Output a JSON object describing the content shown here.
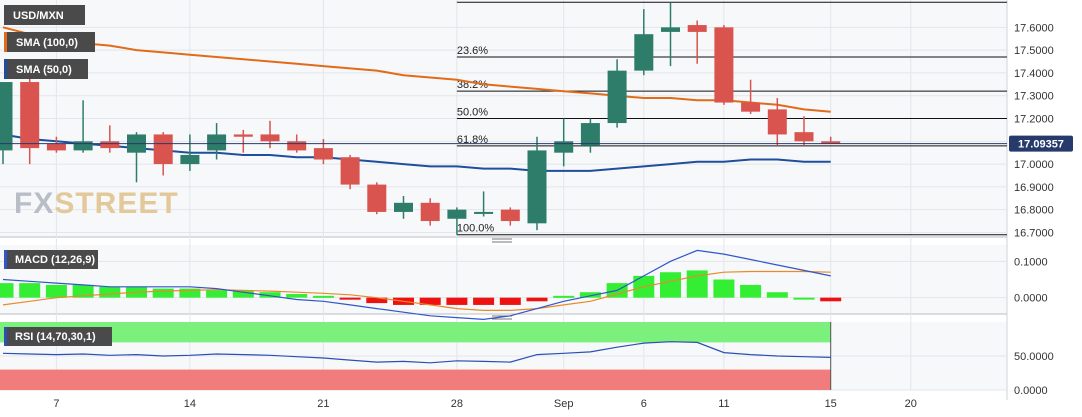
{
  "colors": {
    "up": "#2e7d6b",
    "down": "#d9534f",
    "sma100": "#e06c1a",
    "sma50": "#1f4e9c",
    "macd_line": "#3056c9",
    "signal_line": "#e88a2a",
    "hist_pos": "#33ee33",
    "hist_neg": "#ee1111",
    "rsi_line": "#2a4fb5",
    "rsi_over": "#7cf07c",
    "rsi_under": "#f07c7c",
    "price_tag": "#263a6b",
    "fib": "#111111",
    "grid": "#e3e6ea",
    "legend_bg": "#4a4a4a",
    "watermark": "#c9ced6"
  },
  "legend": {
    "symbol": "USD/MXN",
    "sma100": "SMA (100,0)",
    "sma50": "SMA (50,0)",
    "macd": "MACD (12,26,9)",
    "rsi": "RSI (14,70,30,1)"
  },
  "watermark": {
    "fx": "FX",
    "street": "STREET"
  },
  "price_tag": "17.09357",
  "chart_data": {
    "type": "candlestick",
    "x_labels": [
      {
        "label": "7",
        "index": 2
      },
      {
        "label": "14",
        "index": 7
      },
      {
        "label": "21",
        "index": 12
      },
      {
        "label": "28",
        "index": 17
      },
      {
        "label": "Sep",
        "index": 21
      },
      {
        "label": "6",
        "index": 24
      },
      {
        "label": "11",
        "index": 27
      },
      {
        "label": "15",
        "index": 31
      },
      {
        "label": "20",
        "index": 34
      }
    ],
    "price_axis": {
      "range": [
        16.68,
        17.72
      ],
      "ticks": [
        "17.6000",
        "17.5000",
        "17.4000",
        "17.3000",
        "17.2000",
        "17.1000",
        "17.0000",
        "16.9000",
        "16.8000",
        "16.7000"
      ],
      "tick_values": [
        17.6,
        17.5,
        17.4,
        17.3,
        17.2,
        17.1,
        17.0,
        16.9,
        16.8,
        16.7
      ]
    },
    "candles": [
      {
        "o": 17.06,
        "h": 17.36,
        "l": 17.0,
        "c": 17.36
      },
      {
        "o": 17.36,
        "h": 17.4,
        "l": 17.0,
        "c": 17.07
      },
      {
        "o": 17.09,
        "h": 17.12,
        "l": 17.05,
        "c": 17.06
      },
      {
        "o": 17.06,
        "h": 17.28,
        "l": 17.05,
        "c": 17.1
      },
      {
        "o": 17.1,
        "h": 17.17,
        "l": 17.05,
        "c": 17.07
      },
      {
        "o": 17.05,
        "h": 17.14,
        "l": 16.92,
        "c": 17.13
      },
      {
        "o": 17.13,
        "h": 17.14,
        "l": 16.95,
        "c": 17.0
      },
      {
        "o": 17.0,
        "h": 17.13,
        "l": 16.97,
        "c": 17.04
      },
      {
        "o": 17.06,
        "h": 17.18,
        "l": 17.02,
        "c": 17.13
      },
      {
        "o": 17.13,
        "h": 17.15,
        "l": 17.05,
        "c": 17.12
      },
      {
        "o": 17.13,
        "h": 17.19,
        "l": 17.07,
        "c": 17.1
      },
      {
        "o": 17.1,
        "h": 17.13,
        "l": 17.05,
        "c": 17.06
      },
      {
        "o": 17.07,
        "h": 17.11,
        "l": 17.0,
        "c": 17.02
      },
      {
        "o": 17.03,
        "h": 17.04,
        "l": 16.89,
        "c": 16.91
      },
      {
        "o": 16.91,
        "h": 16.92,
        "l": 16.78,
        "c": 16.79
      },
      {
        "o": 16.79,
        "h": 16.86,
        "l": 16.76,
        "c": 16.83
      },
      {
        "o": 16.83,
        "h": 16.85,
        "l": 16.73,
        "c": 16.75
      },
      {
        "o": 16.76,
        "h": 16.81,
        "l": 16.69,
        "c": 16.8
      },
      {
        "o": 16.79,
        "h": 16.88,
        "l": 16.77,
        "c": 16.79
      },
      {
        "o": 16.8,
        "h": 16.81,
        "l": 16.73,
        "c": 16.75
      },
      {
        "o": 16.74,
        "h": 17.12,
        "l": 16.71,
        "c": 17.06
      },
      {
        "o": 17.05,
        "h": 17.2,
        "l": 16.99,
        "c": 17.1
      },
      {
        "o": 17.08,
        "h": 17.2,
        "l": 17.05,
        "c": 17.18
      },
      {
        "o": 17.18,
        "h": 17.46,
        "l": 17.16,
        "c": 17.41
      },
      {
        "o": 17.41,
        "h": 17.68,
        "l": 17.39,
        "c": 17.57
      },
      {
        "o": 17.58,
        "h": 17.71,
        "l": 17.43,
        "c": 17.6
      },
      {
        "o": 17.61,
        "h": 17.63,
        "l": 17.44,
        "c": 17.58
      },
      {
        "o": 17.6,
        "h": 17.61,
        "l": 17.26,
        "c": 17.27
      },
      {
        "o": 17.27,
        "h": 17.37,
        "l": 17.22,
        "c": 17.23
      },
      {
        "o": 17.24,
        "h": 17.29,
        "l": 17.08,
        "c": 17.13
      },
      {
        "o": 17.14,
        "h": 17.21,
        "l": 17.08,
        "c": 17.1
      },
      {
        "o": 17.1,
        "h": 17.12,
        "l": 17.09,
        "c": 17.09
      }
    ],
    "sma100": [
      17.6,
      17.57,
      17.55,
      17.53,
      17.52,
      17.5,
      17.49,
      17.48,
      17.47,
      17.46,
      17.45,
      17.44,
      17.43,
      17.42,
      17.41,
      17.39,
      17.38,
      17.37,
      17.35,
      17.34,
      17.33,
      17.32,
      17.31,
      17.3,
      17.29,
      17.29,
      17.28,
      17.28,
      17.27,
      17.26,
      17.24,
      17.23
    ],
    "sma50": [
      17.13,
      17.11,
      17.1,
      17.09,
      17.08,
      17.07,
      17.06,
      17.05,
      17.05,
      17.04,
      17.04,
      17.03,
      17.03,
      17.02,
      17.01,
      17.0,
      16.99,
      16.99,
      16.98,
      16.98,
      16.97,
      16.97,
      16.97,
      16.98,
      16.99,
      17.0,
      17.01,
      17.01,
      17.02,
      17.02,
      17.01,
      17.01
    ],
    "fibonacci": [
      {
        "label": "23.6%",
        "value": 17.47
      },
      {
        "label": "38.2%",
        "value": 17.32
      },
      {
        "label": "50.0%",
        "value": 17.2
      },
      {
        "label": "61.8%",
        "value": 17.08
      },
      {
        "label": "100.0%",
        "value": 16.69
      }
    ],
    "fib_top": 17.71,
    "macd": {
      "range": [
        -0.045,
        0.145
      ],
      "ticks": [
        "0.1000",
        "0.0000"
      ],
      "tick_values": [
        0.1,
        0.0
      ],
      "histogram": [
        0.04,
        0.04,
        0.035,
        0.035,
        0.03,
        0.03,
        0.025,
        0.025,
        0.02,
        0.02,
        0.015,
        0.01,
        0.005,
        -0.005,
        -0.015,
        -0.02,
        -0.02,
        -0.02,
        -0.02,
        -0.02,
        -0.01,
        0.005,
        0.015,
        0.04,
        0.06,
        0.07,
        0.075,
        0.05,
        0.035,
        0.015,
        0.0,
        -0.01
      ],
      "macd_line": [
        0.05,
        0.045,
        0.04,
        0.035,
        0.03,
        0.03,
        0.03,
        0.03,
        0.025,
        0.015,
        0.005,
        -0.005,
        -0.01,
        -0.02,
        -0.03,
        -0.04,
        -0.05,
        -0.055,
        -0.06,
        -0.05,
        -0.03,
        -0.01,
        0.005,
        0.02,
        0.06,
        0.1,
        0.13,
        0.12,
        0.105,
        0.09,
        0.075,
        0.06
      ],
      "signal_line": [
        -0.02,
        -0.01,
        0.0,
        0.005,
        0.01,
        0.015,
        0.018,
        0.02,
        0.022,
        0.02,
        0.018,
        0.015,
        0.012,
        0.008,
        0.0,
        -0.01,
        -0.02,
        -0.03,
        -0.035,
        -0.035,
        -0.03,
        -0.02,
        -0.01,
        0.01,
        0.03,
        0.045,
        0.06,
        0.07,
        0.072,
        0.072,
        0.072,
        0.07
      ]
    },
    "rsi": {
      "range": [
        0,
        100
      ],
      "ticks": [
        "50.0000",
        "0.0000"
      ],
      "tick_values": [
        50,
        0
      ],
      "overbought": 70,
      "oversold": 30,
      "values": [
        54,
        53,
        52,
        53,
        51,
        52,
        50,
        51,
        53,
        52,
        51,
        49,
        47,
        44,
        41,
        42,
        40,
        43,
        42,
        41,
        52,
        54,
        56,
        63,
        69,
        71,
        70,
        55,
        52,
        50,
        49,
        48
      ]
    }
  }
}
